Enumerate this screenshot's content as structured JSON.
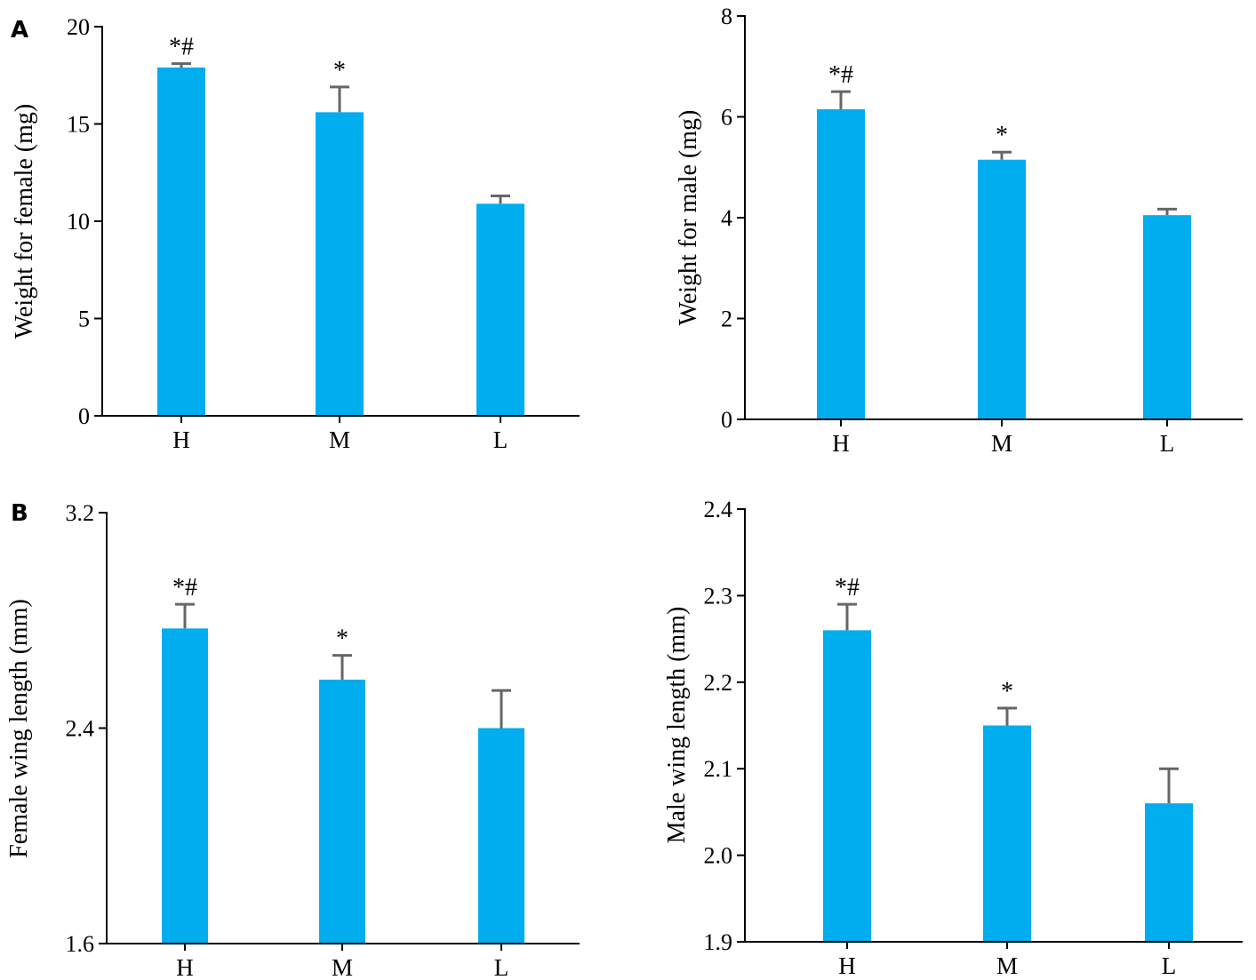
{
  "panels": [
    {
      "letter": "A"
    },
    {
      "letter": "B"
    }
  ],
  "chart_data": [
    {
      "type": "bar",
      "categories": [
        "H",
        "M",
        "L"
      ],
      "values": [
        17.9,
        15.6,
        10.9
      ],
      "errors": [
        0.2,
        1.3,
        0.4
      ],
      "significance": [
        "*#",
        "*",
        ""
      ],
      "ylabel": "Weight for female (mg)",
      "xlabel": "",
      "ylim": [
        0,
        20
      ],
      "yticks": [
        "0",
        "5",
        "10",
        "15",
        "20"
      ],
      "bar_color": "#00adef",
      "error_color": "#666666",
      "grid": false
    },
    {
      "type": "bar",
      "categories": [
        "H",
        "M",
        "L"
      ],
      "values": [
        6.15,
        5.15,
        4.05
      ],
      "errors": [
        0.35,
        0.15,
        0.12
      ],
      "significance": [
        "*#",
        "*",
        ""
      ],
      "ylabel": "Weight for male (mg)",
      "xlabel": "",
      "ylim": [
        0,
        8
      ],
      "yticks": [
        "0",
        "2",
        "4",
        "6",
        "8"
      ],
      "bar_color": "#00adef",
      "error_color": "#666666",
      "grid": false
    },
    {
      "type": "bar",
      "categories": [
        "H",
        "M",
        "L"
      ],
      "values": [
        2.77,
        2.58,
        2.4
      ],
      "errors": [
        0.09,
        0.09,
        0.14
      ],
      "significance": [
        "*#",
        "*",
        ""
      ],
      "ylabel": "Female wing length (mm)",
      "xlabel": "",
      "ylim": [
        1.6,
        3.2
      ],
      "yticks": [
        "1.6",
        "2.4",
        "3.2"
      ],
      "bar_color": "#00adef",
      "error_color": "#666666",
      "grid": false
    },
    {
      "type": "bar",
      "categories": [
        "H",
        "M",
        "L"
      ],
      "values": [
        2.26,
        2.15,
        2.06
      ],
      "errors": [
        0.03,
        0.02,
        0.04
      ],
      "significance": [
        "*#",
        "*",
        ""
      ],
      "ylabel": "Male wing length (mm)",
      "xlabel": "",
      "ylim": [
        1.9,
        2.4
      ],
      "yticks": [
        "1.9",
        "2.0",
        "2.1",
        "2.2",
        "2.3",
        "2.4"
      ],
      "bar_color": "#00adef",
      "error_color": "#666666",
      "grid": false
    }
  ]
}
